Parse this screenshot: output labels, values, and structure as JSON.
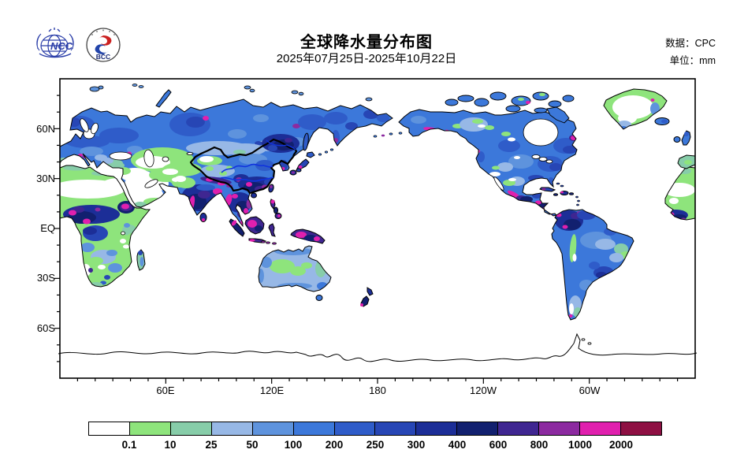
{
  "header": {
    "title": "全球降水量分布图",
    "subtitle": "2025年07月25日-2025年10月22日",
    "source": "数据：CPC",
    "unit": "单位：mm",
    "logo_ncc": "NCC",
    "logo_bcc": "BCC"
  },
  "map": {
    "lat_labels": [
      "60N",
      "30N",
      "EQ",
      "30S",
      "60S"
    ],
    "lon_labels": [
      "60E",
      "120E",
      "180",
      "120W",
      "60W"
    ]
  },
  "colorbar": {
    "boundaries": [
      "0.1",
      "10",
      "25",
      "50",
      "100",
      "200",
      "250",
      "300",
      "400",
      "600",
      "800",
      "1000",
      "2000"
    ],
    "colors": [
      "#FFFFFF",
      "#8EE47C",
      "#87CDA9",
      "#97B8E6",
      "#5E93DD",
      "#3C78DA",
      "#2F5CC9",
      "#2746B5",
      "#1C2E97",
      "#12206F",
      "#3F2691",
      "#8C2AA0",
      "#E020AE",
      "#8E1043"
    ]
  },
  "chart_data": {
    "type": "heatmap",
    "title": "全球降水量分布图",
    "period": "2025年07月25日-2025年10月22日",
    "source": "CPC",
    "unit": "mm",
    "projection": "equirectangular world map, longitude 0E eastward to 360E (Pacific centered), latitude 90N top to 90S bottom",
    "x_ticks": [
      "60E",
      "120E",
      "180",
      "120W",
      "60W"
    ],
    "y_ticks": [
      "60N",
      "30N",
      "EQ",
      "30S",
      "60S"
    ],
    "grid": false,
    "legend_position": "bottom horizontal colorbar",
    "scale_boundaries_mm": [
      0.1,
      10,
      25,
      50,
      100,
      200,
      250,
      300,
      400,
      600,
      800,
      1000,
      2000
    ],
    "scale_colors": [
      "#FFFFFF",
      "#8EE47C",
      "#87CDA9",
      "#97B8E6",
      "#5E93DD",
      "#3C78DA",
      "#2F5CC9",
      "#2746B5",
      "#1C2E97",
      "#12206F",
      "#3F2691",
      "#8C2AA0",
      "#E020AE",
      "#8E1043"
    ],
    "notable_patterns": [
      "Oceans shown white (land-only CPC analysis); Antarctica outlined with no fill",
      "Siberia, Europe and most of North America 100-300 mm (blue tones)",
      "Sahara, Arabia, Middle East and Central Asia <10 mm (white/light green)",
      "India, Bangladesh, Indochina, south China 300-1000+ mm (navy/violet) with >2000 mm magenta cores on India west coast and Himalayan foothills",
      "Maritime continent (Indonesia, New Guinea, Philippines) 600-2000 mm purple/magenta",
      "Tropical Africa 300-600 mm with >1000 mm magenta blobs over Ethiopia and West Africa",
      "Northwest South America (Colombia) 400-1000+ mm; Amazon 50-200 mm; Patagonia 10-50 mm",
      "Australia interior 0.1-25 mm light green, coasts 25-100 mm light blue",
      "Magenta >1000 mm spots along Alaska south coast, Central America and New Zealand South Island",
      "China national border drawn as thick black line with Yellow and Yangtze rivers in blue"
    ]
  }
}
